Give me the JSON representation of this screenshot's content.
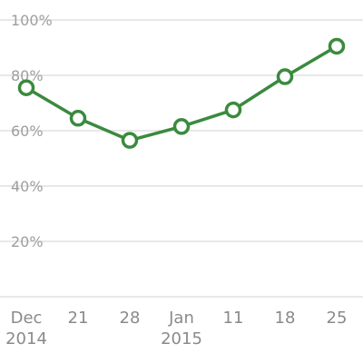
{
  "chart_data": {
    "type": "line",
    "title": "",
    "xlabel": "",
    "ylabel": "",
    "x": [
      "Dec 2014",
      "21",
      "28",
      "Jan 2015",
      "11",
      "18",
      "25"
    ],
    "x_tick_labels": [
      [
        "Dec",
        "2014"
      ],
      [
        "21"
      ],
      [
        "28"
      ],
      [
        "Jan",
        "2015"
      ],
      [
        "11"
      ],
      [
        "18"
      ],
      [
        "25"
      ]
    ],
    "y_ticks": [
      20,
      40,
      60,
      80,
      100
    ],
    "y_tick_labels": [
      "20%",
      "40%",
      "60%",
      "80%",
      "100%"
    ],
    "ylim": [
      0,
      100
    ],
    "grid": true,
    "legend": "none",
    "series": [
      {
        "color": "#3a8a3e",
        "values": [
          75.5,
          64.5,
          56.5,
          61.5,
          67.5,
          79.5,
          90.5
        ]
      }
    ]
  }
}
